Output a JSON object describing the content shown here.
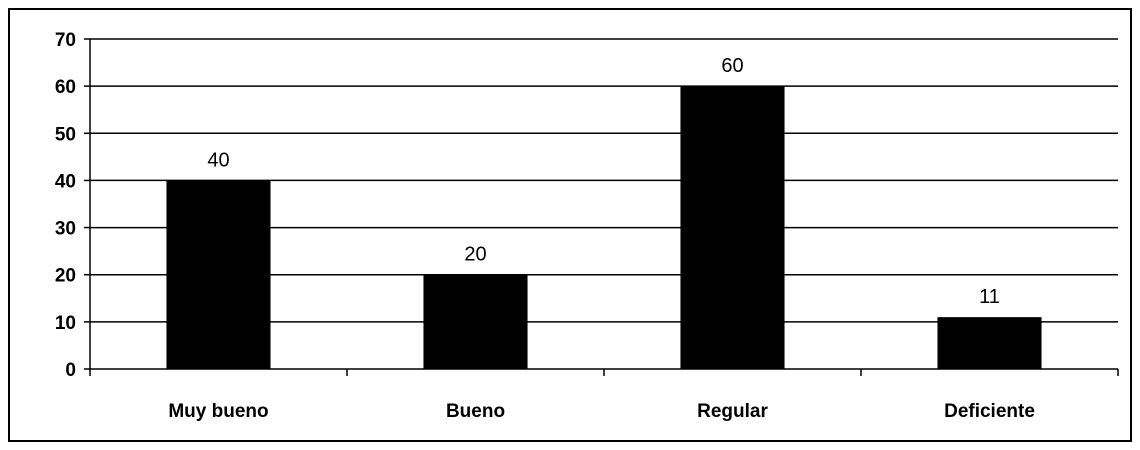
{
  "chart_data": {
    "type": "bar",
    "title": "",
    "xlabel": "",
    "ylabel": "",
    "categories": [
      "Muy bueno",
      "Bueno",
      "Regular",
      "Deficiente"
    ],
    "values": [
      40,
      20,
      60,
      11
    ],
    "data_labels": [
      "40",
      "20",
      "60",
      "11"
    ],
    "ylim": [
      0,
      70
    ],
    "y_ticks": [
      "0",
      "10",
      "20",
      "30",
      "40",
      "50",
      "60",
      "70"
    ],
    "grid": true,
    "legend": "none",
    "bar_color": "#000000",
    "grid_color": "#000000"
  }
}
